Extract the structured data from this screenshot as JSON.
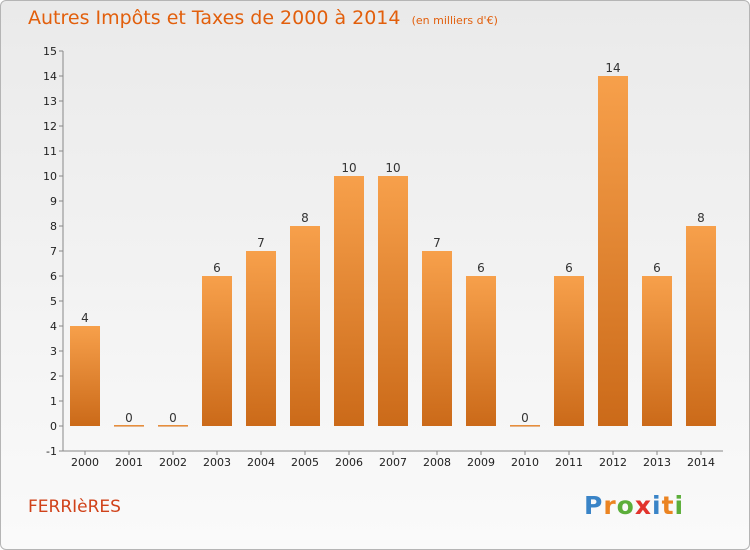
{
  "title": "Autres Impôts et Taxes de 2000 à 2014",
  "title_unit": "(en milliers d'€)",
  "place": "FERRIèRES",
  "logo": {
    "text": "Proxiti",
    "letters": [
      "P",
      "r",
      "o",
      "x",
      "i",
      "t",
      "i"
    ],
    "colors": [
      "#3a84c7",
      "#eb8422",
      "#5cae3a",
      "#e2332c",
      "#3a84c7",
      "#eb8422",
      "#5cae3a"
    ]
  },
  "colors": {
    "bar_top": "#f7a04b",
    "bar_bottom": "#cb6a19",
    "title": "#e25f0c",
    "place": "#d0421a"
  },
  "chart_data": {
    "type": "bar",
    "title": "Autres Impôts et Taxes de 2000 à 2014",
    "subtitle": "(en milliers d'€)",
    "categories": [
      "2000",
      "2001",
      "2002",
      "2003",
      "2004",
      "2005",
      "2006",
      "2007",
      "2008",
      "2009",
      "2010",
      "2011",
      "2012",
      "2013",
      "2014"
    ],
    "values": [
      4,
      0,
      0,
      6,
      7,
      8,
      10,
      10,
      7,
      6,
      0,
      6,
      14,
      6,
      8
    ],
    "data_labels": [
      "4",
      "0",
      "0",
      "6",
      "7",
      "8",
      "10",
      "10",
      "7",
      "6",
      "0",
      "6",
      "14",
      "6",
      "8"
    ],
    "y_ticks": [
      "-1",
      "0",
      "1",
      "2",
      "3",
      "4",
      "5",
      "6",
      "7",
      "8",
      "9",
      "10",
      "11",
      "12",
      "13",
      "14",
      "15"
    ],
    "ylim": [
      -1,
      15
    ],
    "xlabel": "",
    "ylabel": "",
    "grid": false,
    "legend": "none"
  }
}
